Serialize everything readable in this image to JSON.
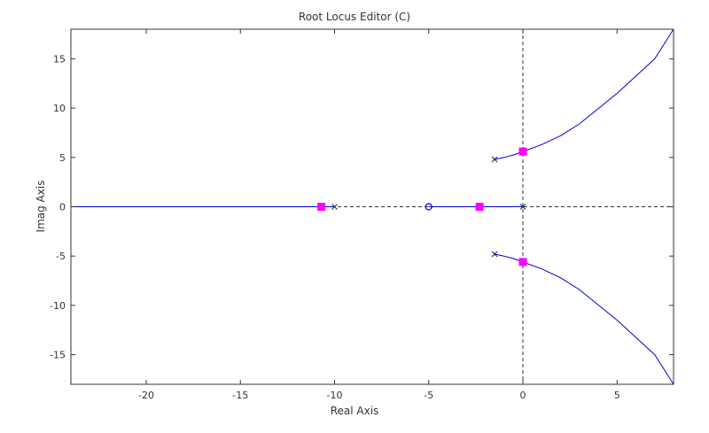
{
  "chart_data": {
    "type": "root-locus",
    "title": "Root Locus Editor (C)",
    "xlabel": "Real Axis",
    "ylabel": "Imag Axis",
    "xlim": [
      -24,
      8
    ],
    "ylim": [
      -18,
      18
    ],
    "xticks": [
      -20,
      -15,
      -10,
      -5,
      0,
      5
    ],
    "yticks": [
      -15,
      -10,
      -5,
      0,
      5,
      10,
      15
    ],
    "grid": false,
    "colors": {
      "locus": "#0000cc",
      "closed_loop_poles": "#ff00ff",
      "reference_lines": "#333333",
      "frame": "#333333"
    },
    "open_loop_poles": [
      {
        "re": -10,
        "im": 0
      },
      {
        "re": 0,
        "im": 0
      },
      {
        "re": -1.5,
        "im": 4.8
      },
      {
        "re": -1.5,
        "im": -4.8
      }
    ],
    "open_loop_zeros": [
      {
        "re": -5,
        "im": 0
      }
    ],
    "closed_loop_poles": [
      {
        "re": -10.7,
        "im": 0
      },
      {
        "re": -2.3,
        "im": 0
      },
      {
        "re": 0,
        "im": 5.6
      },
      {
        "re": 0,
        "im": -5.6
      }
    ],
    "locus_branches": [
      {
        "points": [
          [
            -24,
            0
          ],
          [
            -10,
            0
          ]
        ]
      },
      {
        "points": [
          [
            -5,
            0
          ],
          [
            0,
            0
          ]
        ]
      },
      {
        "points": [
          [
            -1.5,
            4.8
          ],
          [
            -1.0,
            5.0
          ],
          [
            -0.5,
            5.25
          ],
          [
            0,
            5.6
          ],
          [
            1,
            6.3
          ],
          [
            2,
            7.2
          ],
          [
            3,
            8.4
          ],
          [
            5,
            11.5
          ],
          [
            7,
            15.0
          ],
          [
            8,
            18
          ]
        ]
      },
      {
        "points": [
          [
            -1.5,
            -4.8
          ],
          [
            -1.0,
            -5.0
          ],
          [
            -0.5,
            -5.25
          ],
          [
            0,
            -5.6
          ],
          [
            1,
            -6.3
          ],
          [
            2,
            -7.2
          ],
          [
            3,
            -8.4
          ],
          [
            5,
            -11.5
          ],
          [
            7,
            -15.0
          ],
          [
            8,
            -18
          ]
        ]
      }
    ]
  }
}
